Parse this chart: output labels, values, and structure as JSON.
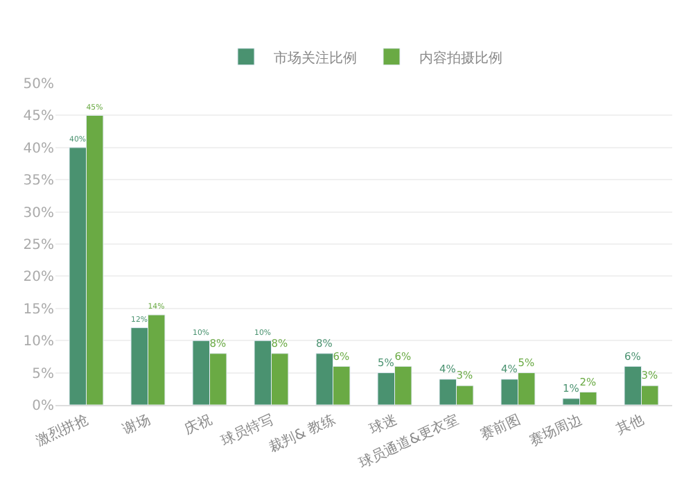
{
  "chart_data": {
    "type": "bar",
    "categories": [
      "激烈拼抢",
      "谢场",
      "庆祝",
      "球员特写",
      "裁判& 教练",
      "球迷",
      "球员通道&更衣室",
      "赛前图",
      "赛场周边",
      "其他"
    ],
    "series": [
      {
        "name": "市场关注比例",
        "color": "#4a9270",
        "values": [
          40,
          12,
          10,
          10,
          8,
          5,
          4,
          4,
          1,
          6
        ],
        "value_labels": [
          "40%",
          "12%",
          "10%",
          "10%",
          "8%",
          "5%",
          "4%",
          "4%",
          "1%",
          "6%"
        ]
      },
      {
        "name": "内容拍摄比例",
        "color": "#6aaa44",
        "values": [
          45,
          14,
          8,
          8,
          6,
          6,
          3,
          5,
          2,
          3
        ],
        "value_labels": [
          "45%",
          "14%",
          "8%",
          "8%",
          "6%",
          "6%",
          "3%",
          "5%",
          "2%",
          "3%"
        ]
      }
    ],
    "ylim": [
      0,
      50
    ],
    "yticks": [
      {
        "value": 0,
        "label": "0%"
      },
      {
        "value": 5,
        "label": "5%"
      },
      {
        "value": 10,
        "label": "10%"
      },
      {
        "value": 15,
        "label": "15%"
      },
      {
        "value": 20,
        "label": "20%"
      },
      {
        "value": 25,
        "label": "25%"
      },
      {
        "value": 30,
        "label": "30%"
      },
      {
        "value": 35,
        "label": "35%"
      },
      {
        "value": 40,
        "label": "40%"
      },
      {
        "value": 45,
        "label": "45%"
      },
      {
        "value": 50,
        "label": "50%"
      }
    ],
    "grid": "y",
    "legend": "top"
  }
}
